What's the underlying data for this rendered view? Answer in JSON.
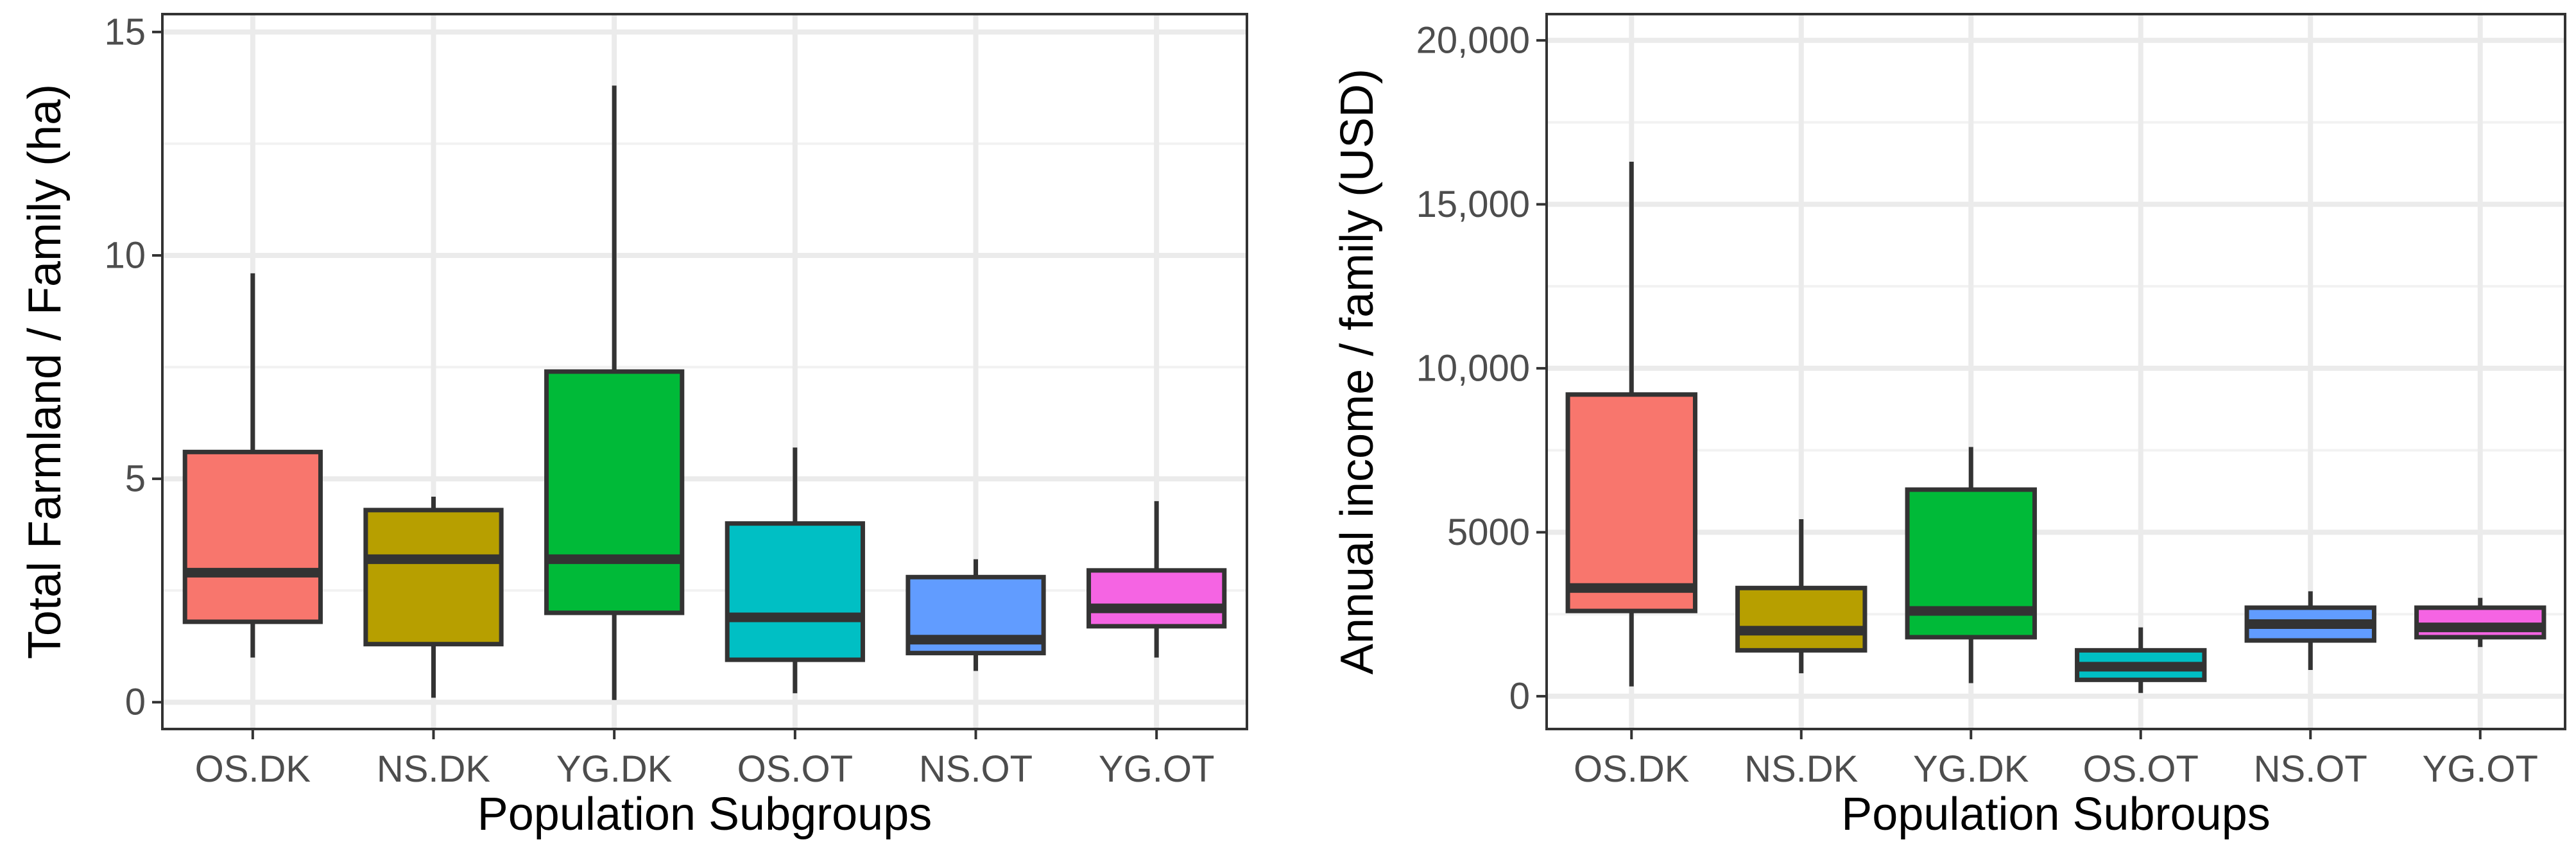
{
  "chart_data": [
    {
      "type": "boxplot",
      "title": "",
      "xlabel": "Population Subgroups",
      "ylabel": "Total Farmland / Family (ha)",
      "ylim": [
        -0.6,
        15.4
      ],
      "yticks": [
        0,
        5,
        10,
        15
      ],
      "ytick_labels": [
        "0",
        "5",
        "10",
        "15"
      ],
      "grid": true,
      "categories": [
        "OS.DK",
        "NS.DK",
        "YG.DK",
        "OS.OT",
        "NS.OT",
        "YG.OT"
      ],
      "boxes": [
        {
          "min": 1.0,
          "q1": 1.8,
          "median": 2.9,
          "q3": 5.6,
          "max": 9.6,
          "color": "#F8766D"
        },
        {
          "min": 0.1,
          "q1": 1.3,
          "median": 3.2,
          "q3": 4.3,
          "max": 4.6,
          "color": "#B79F00"
        },
        {
          "min": 0.05,
          "q1": 2.0,
          "median": 3.2,
          "q3": 7.4,
          "max": 13.8,
          "color": "#00BA38"
        },
        {
          "min": 0.2,
          "q1": 0.95,
          "median": 1.9,
          "q3": 4.0,
          "max": 5.7,
          "color": "#00BFC4"
        },
        {
          "min": 0.7,
          "q1": 1.1,
          "median": 1.4,
          "q3": 2.8,
          "max": 3.2,
          "color": "#619CFF"
        },
        {
          "min": 1.0,
          "q1": 1.7,
          "median": 2.1,
          "q3": 2.95,
          "max": 4.5,
          "color": "#F564E3"
        }
      ]
    },
    {
      "type": "boxplot",
      "title": "",
      "xlabel": "Population Subroups",
      "ylabel": "Annual income / family (USD)",
      "ylim": [
        -1000,
        20800
      ],
      "yticks": [
        0,
        5000,
        10000,
        15000,
        20000
      ],
      "ytick_labels": [
        "0",
        "5000",
        "10,000",
        "15,000",
        "20,000"
      ],
      "grid": true,
      "categories": [
        "OS.DK",
        "NS.DK",
        "YG.DK",
        "OS.OT",
        "NS.OT",
        "YG.OT"
      ],
      "boxes": [
        {
          "min": 300,
          "q1": 2600,
          "median": 3300,
          "q3": 9200,
          "max": 16300,
          "color": "#F8766D"
        },
        {
          "min": 700,
          "q1": 1400,
          "median": 2000,
          "q3": 3300,
          "max": 5400,
          "color": "#B79F00"
        },
        {
          "min": 400,
          "q1": 1800,
          "median": 2600,
          "q3": 6300,
          "max": 7600,
          "color": "#00BA38"
        },
        {
          "min": 100,
          "q1": 500,
          "median": 900,
          "q3": 1400,
          "max": 2100,
          "color": "#00BFC4"
        },
        {
          "min": 800,
          "q1": 1700,
          "median": 2200,
          "q3": 2700,
          "max": 3200,
          "color": "#619CFF"
        },
        {
          "min": 1500,
          "q1": 1800,
          "median": 2100,
          "q3": 2700,
          "max": 3000,
          "color": "#F564E3"
        }
      ]
    }
  ]
}
